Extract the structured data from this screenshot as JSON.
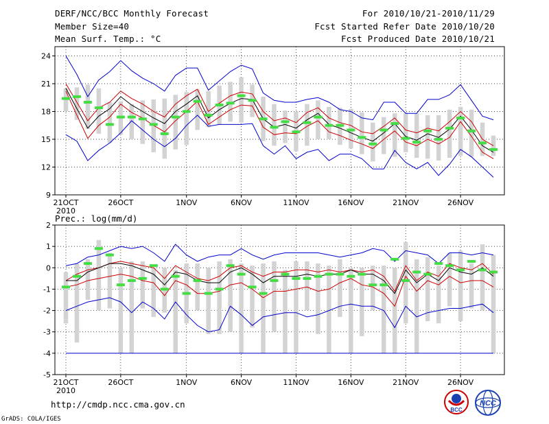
{
  "header": {
    "title": "DERF/NCC/BCC Monthly Forecast",
    "member": "Member Size=40",
    "variable": "Mean Surf. Temp.: °C",
    "period": "For 2010/10/21-2010/11/29",
    "started": "Fcst Started Refer Date 2010/10/20",
    "produced": "Fcst Produced Date 2010/10/21"
  },
  "footer": {
    "url": "http://cmdp.ncc.cma.gov.cn",
    "grads": "GrADS: COLA/IGES",
    "logo1_text": "BCC",
    "logo2_text": "NCC"
  },
  "colors": {
    "ensemble_range": "#0000cc",
    "interquartile": "#cc0000",
    "mean": "#000000",
    "obs_box": "#d3d3d3",
    "median_mark": "#44dd44"
  },
  "chart_data": [
    {
      "type": "box",
      "title": "Mean Surf. Temp.: °C",
      "ylim": [
        9,
        25
      ],
      "yticks": [
        9,
        12,
        15,
        18,
        21,
        24
      ],
      "x_labels": [
        {
          "i": 0,
          "label": "21OCT",
          "sub": "2010"
        },
        {
          "i": 5,
          "label": "26OCT"
        },
        {
          "i": 11,
          "label": "1NOV"
        },
        {
          "i": 16,
          "label": "6NOV"
        },
        {
          "i": 21,
          "label": "11NOV"
        },
        {
          "i": 26,
          "label": "16NOV"
        },
        {
          "i": 31,
          "label": "21NOV"
        },
        {
          "i": 36,
          "label": "26NOV"
        }
      ],
      "series": [
        {
          "name": "max",
          "values": [
            24.0,
            22.0,
            19.6,
            21.4,
            22.3,
            23.5,
            22.4,
            21.6,
            21.0,
            20.2,
            21.9,
            22.7,
            22.7,
            20.3,
            21.3,
            22.3,
            23.0,
            22.6,
            20.0,
            19.2,
            19.0,
            19.0,
            19.3,
            19.5,
            19.0,
            18.2,
            18.0,
            17.3,
            17.1,
            19.0,
            19.0,
            17.8,
            17.8,
            19.3,
            19.3,
            19.8,
            20.9,
            19.2,
            17.5,
            17.1
          ]
        },
        {
          "name": "p75",
          "values": [
            21.0,
            19.0,
            17.0,
            18.4,
            19.0,
            20.2,
            19.4,
            18.8,
            18.0,
            17.4,
            18.8,
            19.7,
            20.4,
            18.0,
            18.9,
            19.7,
            20.1,
            19.9,
            18.0,
            17.0,
            17.3,
            16.8,
            17.9,
            18.4,
            17.3,
            16.8,
            16.5,
            15.8,
            15.6,
            16.4,
            17.3,
            16.0,
            15.7,
            16.2,
            15.9,
            16.9,
            18.0,
            16.9,
            15.0,
            14.3
          ]
        },
        {
          "name": "mean",
          "values": [
            20.5,
            18.3,
            16.2,
            17.5,
            18.3,
            19.6,
            18.7,
            18.0,
            17.3,
            16.7,
            18.0,
            18.8,
            19.7,
            17.3,
            18.2,
            18.9,
            19.4,
            19.3,
            17.2,
            16.3,
            16.6,
            16.2,
            17.1,
            17.8,
            16.6,
            16.2,
            15.7,
            15.2,
            14.8,
            15.7,
            16.7,
            15.3,
            14.9,
            15.6,
            15.2,
            16.1,
            17.5,
            16.0,
            14.3,
            13.6
          ]
        },
        {
          "name": "p25",
          "values": [
            20.2,
            17.6,
            15.1,
            16.5,
            17.4,
            18.8,
            17.9,
            17.3,
            16.5,
            15.8,
            17.0,
            18.0,
            19.1,
            16.6,
            17.4,
            18.2,
            18.7,
            18.6,
            16.3,
            15.5,
            15.7,
            15.6,
            16.4,
            17.0,
            15.8,
            15.4,
            14.9,
            14.5,
            14.0,
            15.0,
            15.9,
            14.7,
            14.3,
            15.0,
            14.5,
            15.2,
            16.9,
            15.3,
            13.6,
            12.9
          ]
        },
        {
          "name": "min",
          "values": [
            15.5,
            14.8,
            12.7,
            13.8,
            14.6,
            15.7,
            17.0,
            16.0,
            15.0,
            14.2,
            15.1,
            16.5,
            17.6,
            16.4,
            16.6,
            16.6,
            16.6,
            16.7,
            14.3,
            13.4,
            14.3,
            12.9,
            13.6,
            13.9,
            12.7,
            13.4,
            13.4,
            12.9,
            11.8,
            11.8,
            13.8,
            12.5,
            11.8,
            12.5,
            11.1,
            12.3,
            13.9,
            13.1,
            12.0,
            10.9
          ]
        },
        {
          "name": "box_low",
          "values": [
            18.0,
            17.1,
            16.1,
            15.6,
            14.6,
            15.5,
            15.0,
            14.5,
            13.6,
            12.9,
            13.9,
            14.4,
            16.0,
            16.3,
            16.6,
            16.9,
            16.8,
            17.4,
            14.8,
            14.3,
            14.6,
            13.7,
            14.3,
            15.0,
            15.0,
            14.4,
            14.0,
            13.4,
            12.6,
            13.4,
            13.1,
            13.6,
            13.0,
            12.9,
            12.7,
            13.0,
            13.2,
            13.1,
            13.2,
            13.2
          ]
        },
        {
          "name": "box_high",
          "values": [
            20.5,
            20.6,
            20.9,
            20.5,
            19.0,
            19.1,
            18.8,
            19.2,
            19.3,
            19.4,
            19.8,
            20.1,
            20.4,
            20.2,
            20.8,
            21.2,
            21.7,
            20.9,
            19.6,
            18.8,
            18.1,
            18.0,
            18.8,
            19.2,
            18.5,
            18.4,
            18.3,
            17.9,
            16.8,
            17.4,
            17.8,
            17.8,
            17.8,
            17.6,
            17.6,
            18.2,
            18.5,
            18.2,
            16.8,
            15.4
          ]
        },
        {
          "name": "median",
          "values": [
            19.4,
            19.6,
            19.0,
            18.4,
            16.6,
            17.4,
            17.4,
            17.2,
            16.6,
            15.6,
            17.4,
            18.0,
            19.1,
            17.6,
            18.7,
            18.9,
            19.7,
            19.2,
            17.2,
            16.3,
            16.9,
            15.8,
            16.8,
            17.4,
            16.5,
            16.5,
            16.0,
            15.2,
            14.5,
            16.0,
            16.7,
            15.1,
            14.7,
            15.9,
            15.0,
            16.2,
            17.3,
            15.9,
            14.6,
            13.9
          ]
        }
      ]
    },
    {
      "type": "box",
      "title": "Prec.: log(mm/d)",
      "ylim": [
        -5,
        2
      ],
      "yticks": [
        -5,
        -4,
        -3,
        -2,
        -1,
        0,
        1,
        2
      ],
      "x_labels": [
        {
          "i": 0,
          "label": "21OCT",
          "sub": "2010"
        },
        {
          "i": 5,
          "label": "26OCT"
        },
        {
          "i": 11,
          "label": "1NOV"
        },
        {
          "i": 16,
          "label": "6NOV"
        },
        {
          "i": 21,
          "label": "11NOV"
        },
        {
          "i": 26,
          "label": "16NOV"
        },
        {
          "i": 31,
          "label": "21NOV"
        },
        {
          "i": 36,
          "label": "26NOV"
        }
      ],
      "series": [
        {
          "name": "max",
          "values": [
            0.1,
            0.2,
            0.5,
            0.6,
            0.8,
            1.0,
            0.9,
            1.0,
            0.7,
            0.3,
            1.1,
            0.6,
            0.3,
            0.5,
            0.6,
            0.6,
            0.9,
            0.6,
            0.4,
            0.6,
            0.7,
            0.7,
            0.7,
            0.7,
            0.6,
            0.5,
            0.6,
            0.7,
            0.9,
            0.8,
            0.3,
            0.8,
            0.7,
            0.6,
            0.2,
            0.7,
            0.7,
            0.6,
            0.7,
            0.6
          ]
        },
        {
          "name": "p75",
          "values": [
            -0.6,
            -0.3,
            -0.1,
            0.0,
            0.2,
            0.3,
            0.2,
            0.1,
            0.0,
            -0.5,
            0.1,
            -0.2,
            -0.5,
            -0.6,
            -0.4,
            0.0,
            0.1,
            -0.2,
            -0.4,
            -0.2,
            -0.2,
            -0.1,
            -0.1,
            -0.2,
            -0.1,
            -0.2,
            -0.1,
            -0.2,
            -0.1,
            -0.4,
            -1.1,
            0.1,
            -0.6,
            -0.2,
            -0.4,
            0.2,
            0.0,
            -0.1,
            0.2,
            -0.3
          ]
        },
        {
          "name": "mean",
          "values": [
            -0.6,
            -0.6,
            -0.2,
            0.0,
            0.2,
            0.2,
            0.1,
            -0.1,
            -0.3,
            -0.8,
            -0.2,
            -0.3,
            -0.6,
            -0.7,
            -0.7,
            -0.2,
            0.0,
            -0.3,
            -0.7,
            -0.4,
            -0.4,
            -0.4,
            -0.3,
            -0.4,
            -0.3,
            -0.3,
            -0.1,
            -0.3,
            -0.3,
            -0.6,
            -1.2,
            -0.1,
            -0.7,
            -0.3,
            -0.6,
            0.0,
            -0.2,
            -0.3,
            0.0,
            -0.4
          ]
        },
        {
          "name": "p25",
          "values": [
            -0.9,
            -0.8,
            -0.6,
            -0.5,
            -0.4,
            -0.3,
            -0.4,
            -0.6,
            -0.7,
            -1.3,
            -0.6,
            -0.8,
            -1.2,
            -1.2,
            -1.1,
            -0.8,
            -0.7,
            -1.0,
            -1.4,
            -1.1,
            -1.1,
            -1.0,
            -0.9,
            -1.1,
            -1.0,
            -0.7,
            -0.5,
            -0.8,
            -0.9,
            -1.2,
            -1.8,
            -0.4,
            -1.1,
            -0.6,
            -0.8,
            -0.4,
            -0.7,
            -0.6,
            -0.6,
            -0.9
          ]
        },
        {
          "name": "min",
          "values": [
            -2.0,
            -1.8,
            -1.6,
            -1.5,
            -1.4,
            -1.6,
            -2.1,
            -1.6,
            -1.9,
            -2.4,
            -1.6,
            -2.2,
            -2.7,
            -3.0,
            -2.9,
            -1.8,
            -2.2,
            -2.7,
            -2.3,
            -2.2,
            -2.1,
            -2.1,
            -2.3,
            -2.2,
            -2.0,
            -1.8,
            -1.7,
            -1.8,
            -1.8,
            -2.0,
            -2.8,
            -1.8,
            -2.3,
            -2.1,
            -2.0,
            -1.9,
            -1.9,
            -1.8,
            -1.7,
            -2.1
          ]
        },
        {
          "name": "box_low",
          "values": [
            -2.6,
            -3.5,
            -1.5,
            -2.0,
            -1.9,
            -4.0,
            -4.0,
            -1.9,
            -2.3,
            -2.1,
            -4.0,
            -2.6,
            -2.0,
            -3.1,
            -3.1,
            -3.0,
            -4.0,
            -2.8,
            -4.0,
            -3.0,
            -4.0,
            -4.0,
            -2.0,
            -3.1,
            -4.0,
            -2.3,
            -4.0,
            -3.2,
            -2.0,
            -4.0,
            -4.0,
            -2.6,
            -4.0,
            -2.5,
            -2.6,
            -1.8,
            -2.5,
            -1.9,
            -2.0,
            -4.0
          ]
        },
        {
          "name": "box_high",
          "values": [
            -0.2,
            0.2,
            0.4,
            1.3,
            0.7,
            0.0,
            0.3,
            0.3,
            0.0,
            0.0,
            -0.1,
            0.2,
            0.2,
            0.0,
            0.3,
            0.4,
            0.2,
            0.1,
            0.2,
            0.3,
            -0.1,
            0.3,
            0.3,
            0.2,
            0.1,
            0.4,
            0.0,
            0.0,
            0.1,
            0.1,
            0.0,
            1.2,
            0.4,
            0.5,
            0.1,
            0.7,
            0.8,
            0.2,
            1.1,
            0.6
          ]
        },
        {
          "name": "median",
          "values": [
            -0.9,
            -0.4,
            0.2,
            0.9,
            0.6,
            -0.8,
            -0.6,
            -0.5,
            0.1,
            -1.0,
            -0.4,
            -1.2,
            -0.6,
            -1.2,
            -1.0,
            0.1,
            -0.3,
            -0.9,
            -1.2,
            -0.6,
            -0.3,
            -0.5,
            -0.5,
            -0.4,
            -0.3,
            -0.3,
            -0.4,
            -0.3,
            -0.8,
            -0.8,
            0.4,
            -0.6,
            -0.2,
            -0.3,
            0.2,
            0.1,
            -0.1,
            0.3,
            -0.1,
            -0.2
          ]
        }
      ]
    }
  ]
}
